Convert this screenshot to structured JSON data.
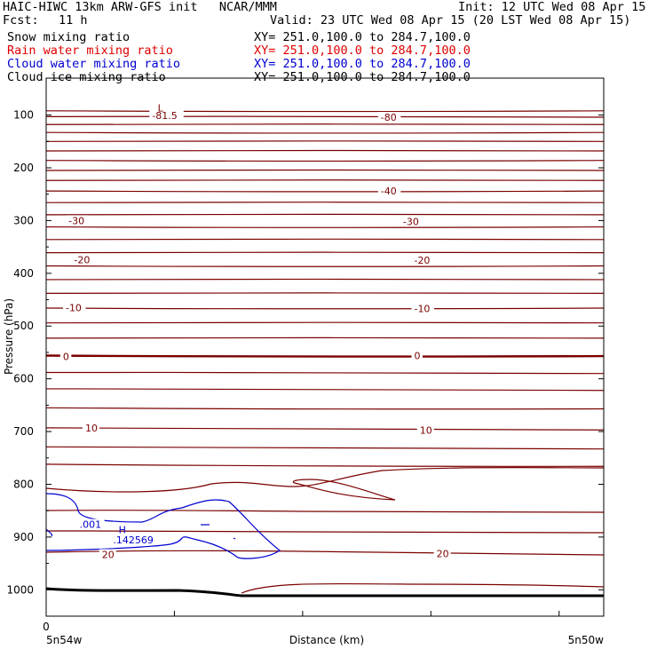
{
  "header": {
    "title_left": "HAIC-HIWC 13km ARW-GFS init   NCAR/MMM",
    "init": "Init: 12 UTC Wed 08 Apr 15",
    "fcst_label": "Fcst:",
    "fcst_value": "11 h",
    "valid": "Valid: 23 UTC Wed 08 Apr 15 (20 LST Wed 08 Apr 15)",
    "fields": [
      {
        "name": "Snow mixing ratio",
        "xy": "XY= 251.0,100.0 to 284.7,100.0",
        "color": "#000000"
      },
      {
        "name": "Rain water mixing ratio",
        "xy": "XY= 251.0,100.0 to 284.7,100.0",
        "color": "#e00000"
      },
      {
        "name": "Cloud water mixing ratio",
        "xy": "XY= 251.0,100.0 to 284.7,100.0",
        "color": "#0000d0"
      },
      {
        "name": "Cloud ice mixing ratio",
        "xy": "XY= 251.0,100.0 to 284.7,100.0",
        "color": "#000000"
      }
    ]
  },
  "chart_data": {
    "type": "contour",
    "xlabel": "Distance (km)",
    "ylabel": "Pressure (hPa)",
    "x_tick_labels": [
      "0"
    ],
    "x_end_labels": [
      "5n54w",
      "5n50w"
    ],
    "y_ticks": [
      100,
      200,
      300,
      400,
      500,
      600,
      700,
      800,
      900,
      1000
    ],
    "ylim": [
      1050,
      30
    ],
    "temperature_contour_labels": [
      {
        "text": "-81.5",
        "p": 101
      },
      {
        "text": "-80",
        "p": 104
      },
      {
        "text": "-40",
        "p": 244
      },
      {
        "text": "-30",
        "p": 300
      },
      {
        "text": "-30",
        "p": 302
      },
      {
        "text": "-20",
        "p": 374
      },
      {
        "text": "-20",
        "p": 375
      },
      {
        "text": "-10",
        "p": 465
      },
      {
        "text": "-10",
        "p": 467
      },
      {
        "text": "0",
        "p": 558
      },
      {
        "text": "0",
        "p": 556
      },
      {
        "text": "10",
        "p": 693
      },
      {
        "text": "10",
        "p": 697
      },
      {
        "text": "20",
        "p": 933
      },
      {
        "text": "20",
        "p": 931
      }
    ],
    "extrema_labels": [
      {
        "text": "L",
        "p": 86
      },
      {
        "text": "H",
        "p": 886
      }
    ],
    "cloud_water_labels": [
      {
        "text": ".001",
        "p": 876
      },
      {
        "text": ".142569",
        "p": 905
      }
    ],
    "colors": {
      "temperature": "#7a0000",
      "cloud_water": "#0000d0",
      "terrain": "#000000"
    }
  }
}
